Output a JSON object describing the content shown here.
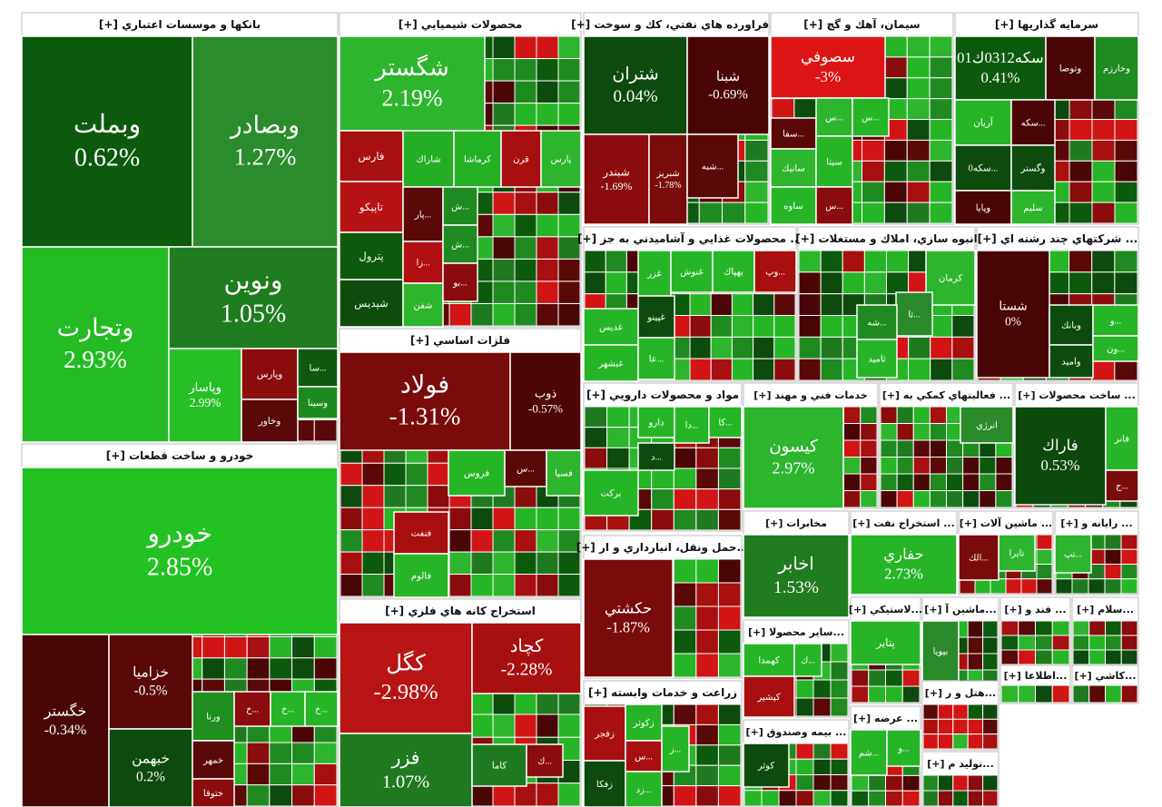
{
  "sectors": [
    {
      "title": "بانکها و موسسات اعتباري [+]",
      "tiles": [
        {
          "name": "وبملت",
          "change": "0.62%",
          "color": "#0c5a0c"
        },
        {
          "name": "وبصادر",
          "change": "1.27%",
          "color": "#2a8c2a"
        },
        {
          "name": "وتجارت",
          "change": "2.93%",
          "color": "#24bb24"
        },
        {
          "name": "ونوين",
          "change": "1.05%",
          "color": "#1f7c1f"
        },
        {
          "name": "وپاسار",
          "change": "2.99%",
          "color": "#26c026"
        },
        {
          "name": "وپارس",
          "color": "#8a0c0c"
        },
        {
          "name": "وخاور",
          "color": "#5a0808"
        },
        {
          "name": "...سا",
          "color": "#0f5a0f"
        },
        {
          "name": "وسينا",
          "color": "#1d8a1d"
        }
      ]
    },
    {
      "title": "خودرو و ساخت قطعات [+]",
      "tiles": [
        {
          "name": "خودرو",
          "change": "2.85%",
          "color": "#22c222"
        },
        {
          "name": "خگستر",
          "change": "-0.34%",
          "color": "#4a0606"
        },
        {
          "name": "خزاميا",
          "change": "-0.5%",
          "color": "#5a0808"
        },
        {
          "name": "خبهمن",
          "change": "0.2%",
          "color": "#0d4a0d"
        },
        {
          "name": "ورنا",
          "color": "#1f8f1f"
        },
        {
          "name": "خمهر",
          "color": "#5a0808"
        },
        {
          "name": "ختوقا",
          "color": "#8a0c0c"
        },
        {
          "name": "...خ",
          "color": "#8a0c0c"
        },
        {
          "name": "...خ",
          "color": "#26b526"
        },
        {
          "name": "...خ",
          "color": "#26b526"
        }
      ]
    },
    {
      "title": "محصولات شيميايي [+]",
      "tiles": [
        {
          "name": "شگستر",
          "change": "2.19%",
          "color": "#2db52d"
        },
        {
          "name": "فارس",
          "color": "#a80f0f"
        },
        {
          "name": "شاراك",
          "color": "#25ad25"
        },
        {
          "name": "كرماشا",
          "color": "#24b024"
        },
        {
          "name": "قرن",
          "color": "#a80f0f"
        },
        {
          "name": "پارس",
          "color": "#2db52d"
        },
        {
          "name": "تاپيكو",
          "color": "#b81313"
        },
        {
          "name": "پترول",
          "color": "#0c5a0c"
        },
        {
          "name": "شپديس",
          "color": "#0c4d0c"
        },
        {
          "name": "...پار",
          "color": "#5a0808"
        },
        {
          "name": "...زا",
          "color": "#b01010"
        },
        {
          "name": "شفن",
          "color": "#2db52d"
        },
        {
          "name": "...ش",
          "color": "#1f8a1f"
        },
        {
          "name": "...ش",
          "color": "#1f8a1f"
        },
        {
          "name": "...بو",
          "color": "#8a0c0c"
        }
      ]
    },
    {
      "title": "فلزات اساسي [+]",
      "tiles": [
        {
          "name": "فولاد",
          "change": "-1.31%",
          "color": "#7a0b0b"
        },
        {
          "name": "ذوب",
          "change": "-0.57%",
          "color": "#4f0606"
        },
        {
          "name": "فنفت",
          "color": "#a80f0f"
        },
        {
          "name": "فالوم",
          "color": "#26b526"
        },
        {
          "name": "فروس",
          "color": "#26b526"
        },
        {
          "name": "...س",
          "color": "#5a0808"
        },
        {
          "name": "فسپا",
          "color": "#2db52d"
        }
      ]
    },
    {
      "title": "استخراج كانه هاي فلزي [+]",
      "tiles": [
        {
          "name": "كگل",
          "change": "-2.98%",
          "color": "#b81414"
        },
        {
          "name": "كچاد",
          "change": "-2.28%",
          "color": "#a80f0f"
        },
        {
          "name": "فزر",
          "change": "1.07%",
          "color": "#1f7a1f"
        },
        {
          "name": "كاما",
          "color": "#1f7a1f"
        },
        {
          "name": "...ك",
          "color": "#8a0c0c"
        }
      ]
    },
    {
      "title": "...فراورده هاي نفتي، كك و سوخت [+]",
      "tiles": [
        {
          "name": "شتران",
          "change": "0.04%",
          "color": "#0d4a0d"
        },
        {
          "name": "شبنا",
          "change": "-0.69%",
          "color": "#4a0606"
        },
        {
          "name": "شبندر",
          "change": "-1.69%",
          "color": "#8a0c0c"
        },
        {
          "name": "شبريز",
          "change": "-1.78%",
          "color": "#7a0b0b"
        },
        {
          "name": "...شبه",
          "color": "#5a0808"
        }
      ]
    },
    {
      "title": "سيمان، آهك و گچ [+]",
      "tiles": [
        {
          "name": "سصوفي",
          "change": "-3%",
          "color": "#dd1414"
        },
        {
          "name": "...سفا",
          "color": "#5a0808"
        },
        {
          "name": "...س",
          "color": "#2db52d"
        },
        {
          "name": "...س",
          "color": "#26b526"
        },
        {
          "name": "سانيك",
          "color": "#2db52d"
        },
        {
          "name": "سيتا",
          "color": "#26b526"
        },
        {
          "name": "ساوه",
          "color": "#26b526"
        },
        {
          "name": "...س",
          "color": "#8a0c0c"
        }
      ]
    },
    {
      "title": "سرمايه گذاريها [+]",
      "tiles": [
        {
          "name": "سكه0312ك01",
          "change": "0.41%",
          "color": "#0c5a0c"
        },
        {
          "name": "وتوصا",
          "color": "#4a0606"
        },
        {
          "name": "وخارزم",
          "color": "#1f8a1f"
        },
        {
          "name": "آريان",
          "color": "#26b526"
        },
        {
          "name": "...سكه",
          "color": "#4a0606"
        },
        {
          "name": "...سكه0",
          "color": "#0d4a0d"
        },
        {
          "name": "وگستر",
          "color": "#0d4a0d"
        },
        {
          "name": "وپايا",
          "color": "#4a0606"
        },
        {
          "name": "سليم",
          "color": "#2db52d"
        }
      ]
    },
    {
      "title": "... محصولات غذايي و آشاميدني به جز [+]",
      "tiles": [
        {
          "name": "غديس",
          "color": "#26b526"
        },
        {
          "name": "غبشهر",
          "color": "#26b526"
        },
        {
          "name": "غزر",
          "color": "#26b526"
        },
        {
          "name": "غنوش",
          "color": "#26b526"
        },
        {
          "name": "بهپاك",
          "color": "#26b526"
        },
        {
          "name": "...وپ",
          "color": "#a80f0f"
        },
        {
          "name": "غپينو",
          "color": "#0d4a0d"
        },
        {
          "name": "...عا",
          "color": "#26b526"
        }
      ]
    },
    {
      "title": "انبوه سازي، املاك و مستغلات [+]",
      "tiles": [
        {
          "name": "كرمان",
          "color": "#2db52d"
        },
        {
          "name": "...ثا",
          "color": "#2a8a2a"
        },
        {
          "name": "...شه",
          "color": "#1f8a1f"
        },
        {
          "name": "ثاميد",
          "color": "#26b526"
        }
      ]
    },
    {
      "title": "... شركتهاي چند رشته اي [+]",
      "tiles": [
        {
          "name": "شستا",
          "change": "0%",
          "color": "#4a0606"
        },
        {
          "name": "وبانك",
          "color": "#0d4a0d"
        },
        {
          "name": "واميد",
          "color": "#0d4a0d"
        },
        {
          "name": "...و",
          "color": "#26b526"
        },
        {
          "name": "...ون",
          "color": "#26b526"
        }
      ]
    },
    {
      "title": "مواد و محصولات دارويي [+]",
      "tiles": [
        {
          "name": "دارو",
          "color": "#26b526"
        },
        {
          "name": "...دا",
          "color": "#26b526"
        },
        {
          "name": "...كا",
          "color": "#26b526"
        },
        {
          "name": "...د",
          "color": "#0d4a0d"
        },
        {
          "name": "بركت",
          "color": "#26b526"
        }
      ]
    },
    {
      "title": "خدمات فني و مهند [+]",
      "tiles": [
        {
          "name": "كيسون",
          "change": "2.97%",
          "color": "#2db52d"
        }
      ]
    },
    {
      "title": "... فعاليتهاي كمكي به [+]",
      "tiles": [
        {
          "name": "انرژي",
          "color": "#2a8a2a"
        }
      ]
    },
    {
      "title": "... ساخت محصولات [+]",
      "tiles": [
        {
          "name": "فاراك",
          "change": "0.53%",
          "color": "#0c4a0c"
        },
        {
          "name": "فانر",
          "color": "#26b526"
        },
        {
          "name": "...ج",
          "color": "#7a0b0b"
        }
      ]
    },
    {
      "title": "...حمل ونقل، انبارداري و ار [+]",
      "tiles": [
        {
          "name": "حكشتي",
          "change": "-1.87%",
          "color": "#7a0b0b"
        }
      ]
    },
    {
      "title": "زراعت و خدمات وابسته [+]",
      "tiles": [
        {
          "name": "زفجر",
          "color": "#a80f0f"
        },
        {
          "name": "زكوثر",
          "color": "#26b526"
        },
        {
          "name": "زفكا",
          "color": "#0d4a0d"
        },
        {
          "name": "...س",
          "color": "#a80f0f"
        },
        {
          "name": "...زد",
          "color": "#26b526"
        },
        {
          "name": "...ز",
          "color": "#26b526"
        }
      ]
    },
    {
      "title": "مخابرات [+]",
      "tiles": [
        {
          "name": "اخابر",
          "change": "1.53%",
          "color": "#1f7c1f"
        }
      ]
    },
    {
      "title": "... استخراج نفت [+]",
      "tiles": [
        {
          "name": "حفاري",
          "change": "2.73%",
          "color": "#26b526"
        }
      ]
    },
    {
      "title": "... ماشين آلات [+]",
      "tiles": [
        {
          "name": "تايرا",
          "color": "#2db52d"
        },
        {
          "name": "...الك",
          "color": "#7a0b0b"
        }
      ]
    },
    {
      "title": "... رايانه و [+]",
      "tiles": [
        {
          "name": "...تپ",
          "color": "#2db52d"
        }
      ]
    },
    {
      "title": "...ساير محصولا [+]",
      "tiles": [
        {
          "name": "كهمدا",
          "color": "#26b526"
        },
        {
          "name": "...ك",
          "color": "#26b526"
        },
        {
          "name": "كپشير",
          "color": "#a80f0f"
        }
      ]
    },
    {
      "title": "... بيمه وصندوق [+]",
      "tiles": [
        {
          "name": "كوثر",
          "color": "#0d4a0d"
        }
      ]
    },
    {
      "title": "...لاستيكي [+]",
      "tiles": [
        {
          "name": "پتاير",
          "color": "#26b526"
        }
      ]
    },
    {
      "title": "...ماشين آ [+]",
      "tiles": [
        {
          "name": "بپويا",
          "color": "#2a8a2a"
        }
      ]
    },
    {
      "title": "... قند و [+]",
      "tiles": []
    },
    {
      "title": "...سلام [+]",
      "tiles": []
    },
    {
      "title": "... عرضه [+]",
      "tiles": [
        {
          "name": "...شم",
          "color": "#26b526"
        },
        {
          "name": "...و",
          "color": "#26b526"
        }
      ]
    },
    {
      "title": "...هتل و ر [+]",
      "tiles": []
    },
    {
      "title": "...توليد م [+]",
      "tiles": []
    },
    {
      "title": "...اطلاعا [+]",
      "tiles": []
    },
    {
      "title": "...كاشي [+]",
      "tiles": []
    }
  ]
}
